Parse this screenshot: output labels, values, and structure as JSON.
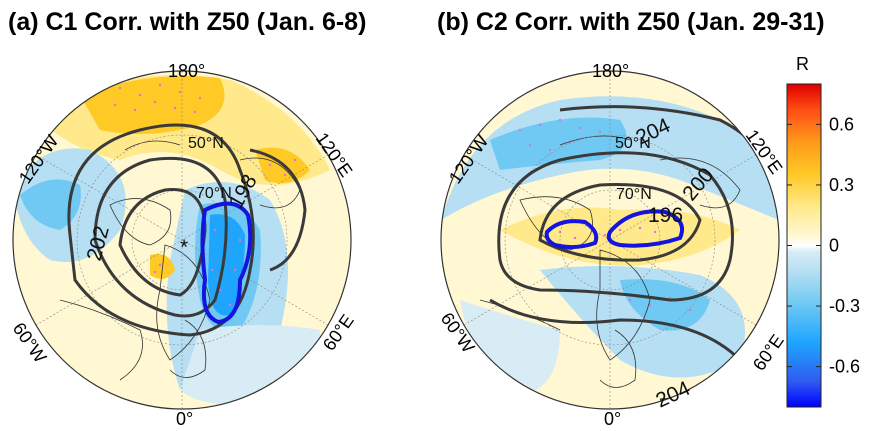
{
  "panels": [
    {
      "title": "(a) C1 Corr. with Z50 (Jan. 6-8)",
      "lon_labels": [
        "180°",
        "120°E",
        "60°E",
        "0°",
        "60°W",
        "120°W"
      ],
      "lat_labels": [
        "50°N",
        "70°N"
      ],
      "contour_labels": [
        "202",
        "198"
      ],
      "marker": "*"
    },
    {
      "title": "(b) C2 Corr. with Z50 (Jan. 29-31)",
      "lon_labels": [
        "180°",
        "120°E",
        "60°E",
        "0°",
        "60°W",
        "120°W"
      ],
      "lat_labels": [
        "50°N",
        "70°N"
      ],
      "contour_labels": [
        "204",
        "200",
        "196",
        "204"
      ]
    }
  ],
  "colorbar": {
    "label": "R",
    "ticks": [
      "0.6",
      "0.3",
      "0",
      "-0.3",
      "-0.6"
    ],
    "tick_values": [
      0.6,
      0.3,
      0,
      -0.3,
      -0.6
    ],
    "range": [
      -0.8,
      0.8
    ],
    "colors": [
      "#0000ff",
      "#2f5cf0",
      "#1ea6ff",
      "#6fc9f2",
      "#b6dff3",
      "#d7ecf4",
      "#ffffff",
      "#fff8d2",
      "#ffe98a",
      "#ffc926",
      "#ff9a1a",
      "#ff4d14",
      "#e00000"
    ]
  },
  "colors": {
    "contour": "#3a3a3a",
    "contour_highlight": "#1414e0",
    "significance_dots": "#e070e0",
    "coastline": "#333333"
  }
}
